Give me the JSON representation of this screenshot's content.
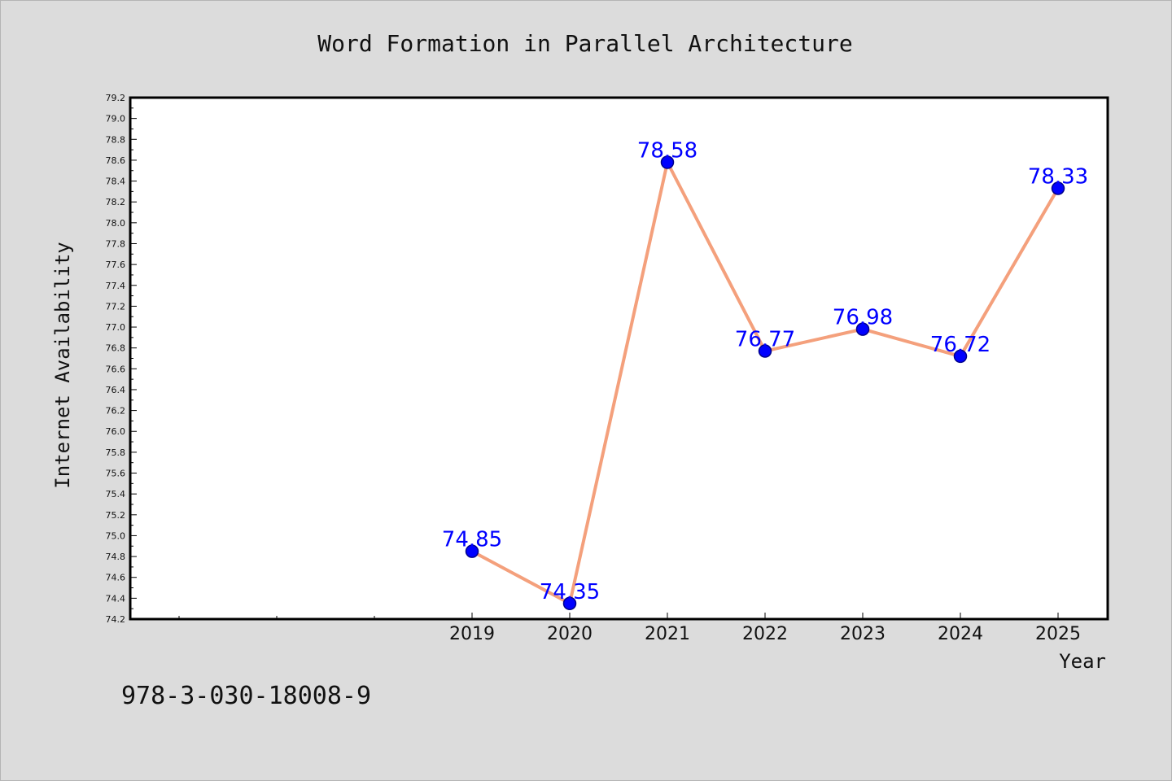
{
  "chart_data": {
    "type": "line",
    "title": "Word Formation in Parallel Architecture",
    "xlabel": "Year",
    "ylabel": "Internet Availability",
    "categories": [
      "2019",
      "2020",
      "2021",
      "2022",
      "2023",
      "2024",
      "2025"
    ],
    "series": [
      {
        "values": [
          74.85,
          74.35,
          78.58,
          76.77,
          76.98,
          76.72,
          78.33
        ],
        "data_labels": [
          "74.85",
          "74.35",
          "78.58",
          "76.77",
          "76.98",
          "76.72",
          "78.33"
        ]
      }
    ],
    "ylim": [
      74.2,
      79.2
    ],
    "yticks": [
      "74.2",
      "74.4",
      "74.6",
      "74.8",
      "75.0",
      "75.2",
      "75.4",
      "75.6",
      "75.8",
      "76.0",
      "76.2",
      "76.4",
      "76.6",
      "76.8",
      "77.0",
      "77.2",
      "77.4",
      "77.6",
      "77.8",
      "78.0",
      "78.2",
      "78.4",
      "78.6",
      "78.8",
      "79.0",
      "79.2"
    ],
    "grid": false,
    "legend": "none",
    "colors": {
      "line": "#f4a07c",
      "marker": "#0000ff",
      "marker_edge": "#00008b",
      "data_label": "#0000ff",
      "plot_background": "#ffffff",
      "figure_background": "#dcdcdc"
    }
  },
  "footer_text": "978-3-030-18008-9"
}
